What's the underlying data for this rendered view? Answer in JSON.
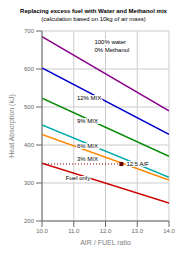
{
  "chart_data": {
    "type": "line",
    "title": "Replacing excess fuel with Water and Methanol mix",
    "subtitle": "(calculation based on 10kg of air mass)",
    "x_label": "AIR / FUEL ratio",
    "y_label": "Heat Absorption (kJ)",
    "x": [
      10.0,
      14.0
    ],
    "series": [
      {
        "color": "#880088",
        "values": [
          685,
          490
        ]
      },
      {
        "color": "#0000cc",
        "values": [
          603,
          428
        ]
      },
      {
        "color": "#008800",
        "values": [
          523,
          370
        ]
      },
      {
        "color": "#00aaaa",
        "values": [
          453,
          315
        ]
      },
      {
        "color": "#ff8800",
        "values": [
          428,
          308
        ]
      },
      {
        "color": "#cc0000",
        "values": [
          352,
          247
        ]
      }
    ],
    "xlim": [
      10.0,
      14.0
    ],
    "ylim": [
      200,
      700
    ],
    "xticks": [
      {
        "value": 10,
        "label": "10.0"
      },
      {
        "value": 11,
        "label": "11.0"
      },
      {
        "value": 12,
        "label": "12.0"
      },
      {
        "value": 13,
        "label": "13.0"
      },
      {
        "value": 14,
        "label": "14.0"
      }
    ],
    "yticks": [
      200,
      300,
      400,
      500,
      600,
      700
    ],
    "grid": true,
    "annotations": [
      {
        "text": "100% water\n0% Methanol",
        "x": 11.65,
        "y": 660
      },
      {
        "text": "12% MIX",
        "x": 11.1,
        "y": 523
      },
      {
        "text": "9% MIX",
        "x": 11.1,
        "y": 462
      },
      {
        "text": "6% MIX",
        "x": 11.1,
        "y": 397
      },
      {
        "text": "3% MIX",
        "x": 11.1,
        "y": 362
      },
      {
        "text": "Fuel only",
        "x": 10.75,
        "y": 312
      }
    ],
    "reference_line": {
      "x": [
        10.0,
        12.5
      ],
      "y": 350,
      "color": "#880000",
      "line_style": "dotted"
    },
    "reference_point": {
      "x": 12.5,
      "y": 350,
      "label": "12.5 A/F",
      "color": "#660000",
      "marker": "square"
    }
  }
}
